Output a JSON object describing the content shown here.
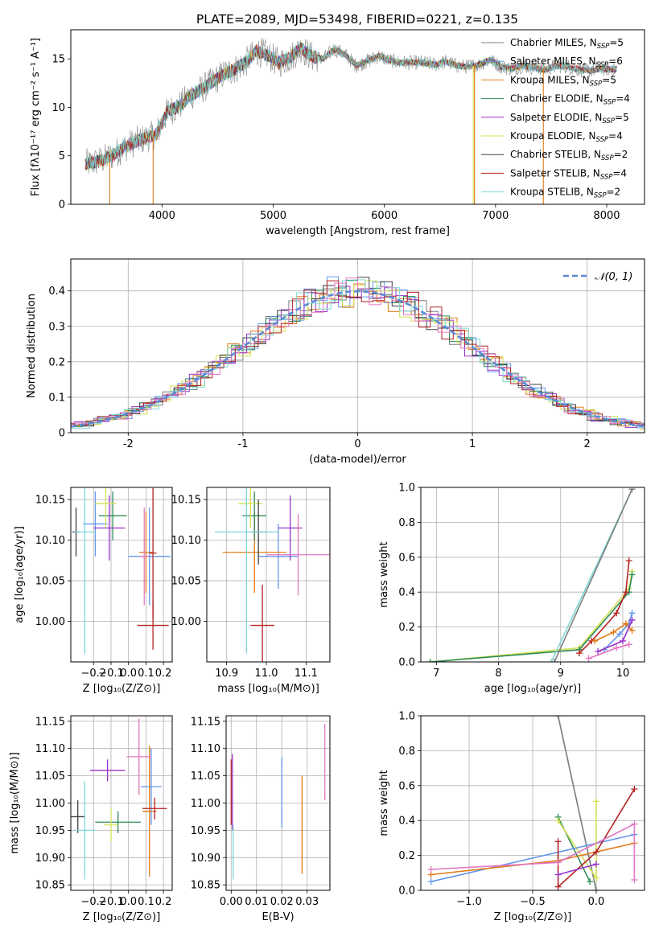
{
  "figure_title": "PLATE=2089, MJD=53498, FIBERID=0221, z=0.135",
  "colors": {
    "chabrier_miles": "#7f7f7f",
    "salpeter_miles": "#6495ed",
    "kroupa_miles": "#e07b1a",
    "chabrier_elodie": "#2e8b57",
    "salpeter_elodie": "#9932cc",
    "kroupa_elodie": "#d4e157",
    "chabrier_stelib": "#404040",
    "salpeter_stelib": "#b22222",
    "kroupa_stelib": "#7fd6d6",
    "pink": "#e377c2",
    "gauss": "#5b8ad6",
    "grid": "#b0b0b0"
  },
  "chart_data": [
    {
      "id": "spectrum",
      "type": "line",
      "title": "PLATE=2089, MJD=53498, FIBERID=0221, z=0.135",
      "xlabel": "wavelength [Angstrom, rest frame]",
      "ylabel": "Flux [fλ10⁻¹⁷ erg cm⁻² s⁻¹ A⁻¹]",
      "xlim": [
        3180,
        8340
      ],
      "ylim": [
        0,
        18
      ],
      "xticks": [
        4000,
        5000,
        6000,
        7000,
        8000
      ],
      "yticks": [
        0,
        5,
        10,
        15
      ],
      "grid": false,
      "legend_position": "top-right",
      "x": [
        3350,
        3450,
        3550,
        3650,
        3750,
        3850,
        3950,
        4050,
        4150,
        4250,
        4350,
        4450,
        4550,
        4650,
        4750,
        4850,
        4950,
        5050,
        5150,
        5250,
        5350,
        5450,
        5550,
        5650,
        5750,
        5850,
        5950,
        6050,
        6150,
        6250,
        6350,
        6450,
        6550,
        6650,
        6750,
        6850,
        6950,
        7050,
        7150,
        7250,
        7350,
        7450,
        7550,
        7650,
        7750,
        7850,
        7950,
        8050
      ],
      "y": [
        4.2,
        4.5,
        5.0,
        5.8,
        6.4,
        6.8,
        7.2,
        9.6,
        10.1,
        11.2,
        11.8,
        12.6,
        13.4,
        13.9,
        14.6,
        15.8,
        15.4,
        14.6,
        15.1,
        16.1,
        15.2,
        15.0,
        16.0,
        15.4,
        14.3,
        14.8,
        15.3,
        14.8,
        14.6,
        14.6,
        14.6,
        14.4,
        14.7,
        14.3,
        14.2,
        14.4,
        14.9,
        14.2,
        14.0,
        14.3,
        14.1,
        13.9,
        14.3,
        14.2,
        13.9,
        13.8,
        14.0,
        13.9
      ],
      "series": [
        {
          "name": "Chabrier MILES, N_SSP=5",
          "label": "Chabrier MILES, N",
          "sub": "SSP",
          "n": "=5",
          "color": "#7f7f7f"
        },
        {
          "name": "Salpeter MILES, N_SSP=6",
          "label": "Salpeter MILES, N",
          "sub": "SSP",
          "n": "=6",
          "color": "#6495ed"
        },
        {
          "name": "Kroupa MILES, N_SSP=5",
          "label": "Kroupa MILES, N",
          "sub": "SSP",
          "n": "=5",
          "color": "#e07b1a"
        },
        {
          "name": "Chabrier ELODIE, N_SSP=4",
          "label": "Chabrier ELODIE, N",
          "sub": "SSP",
          "n": "=4",
          "color": "#2e8b57"
        },
        {
          "name": "Salpeter ELODIE, N_SSP=5",
          "label": "Salpeter ELODIE, N",
          "sub": "SSP",
          "n": "=5",
          "color": "#9932cc"
        },
        {
          "name": "Kroupa ELODIE, N_SSP=4",
          "label": "Kroupa ELODIE, N",
          "sub": "SSP",
          "n": "=4",
          "color": "#d4e157"
        },
        {
          "name": "Chabrier STELIB, N_SSP=2",
          "label": "Chabrier STELIB, N",
          "sub": "SSP",
          "n": "=2",
          "color": "#404040"
        },
        {
          "name": "Salpeter STELIB, N_SSP=4",
          "label": "Salpeter STELIB, N",
          "sub": "SSP",
          "n": "=4",
          "color": "#b22222"
        },
        {
          "name": "Kroupa STELIB, N_SSP=2",
          "label": "Kroupa STELIB, N",
          "sub": "SSP",
          "n": "=2",
          "color": "#7fd6d6"
        }
      ],
      "drops_to_zero": [
        {
          "x": 3530,
          "color": "#e07b1a"
        },
        {
          "x": 3920,
          "color": "#e07b1a"
        },
        {
          "x": 6800,
          "color": "#d4e157"
        },
        {
          "x": 6810,
          "color": "#e07b1a"
        },
        {
          "x": 7430,
          "color": "#e07b1a"
        }
      ]
    },
    {
      "id": "residuals",
      "type": "line",
      "xlabel": "(data-model)/error",
      "ylabel": "Normed distribution",
      "xlim": [
        -2.5,
        2.5
      ],
      "ylim": [
        0,
        0.49
      ],
      "xticks": [
        -2,
        -1,
        0,
        1,
        2
      ],
      "yticks": [
        0.0,
        0.1,
        0.2,
        0.3,
        0.4
      ],
      "grid": true,
      "legend_position": "top-right",
      "legend_label": "𝒩(0, 1)",
      "gaussian": {
        "mean": 0,
        "sigma": 1
      }
    },
    {
      "id": "age-vs-Z",
      "type": "scatter",
      "xlabel": "Z [log₁₀(Z/Z⊙)]",
      "ylabel": "age  [log₁₀(age/yr)]",
      "xlim": [
        -0.33,
        0.25
      ],
      "ylim": [
        9.95,
        10.165
      ],
      "xticks": [
        -0.2,
        -0.1,
        0.0,
        0.1,
        0.2
      ],
      "xticklabels": [
        "−0.2",
        "−0.1",
        "0.0",
        "0.1",
        "0.2"
      ],
      "yticks": [
        10.0,
        10.05,
        10.1,
        10.15
      ],
      "yticklabels": [
        "10.00",
        "10.05",
        "10.10",
        "10.15"
      ],
      "grid": true,
      "points": [
        {
          "x": -0.19,
          "y": 10.12,
          "xerr": 0.07,
          "yerr": 0.04,
          "color": "#6495ed"
        },
        {
          "x": 0.12,
          "y": 10.08,
          "xerr": 0.12,
          "yerr": 0.06,
          "color": "#6495ed"
        },
        {
          "x": 0.1,
          "y": 10.085,
          "xerr": 0.04,
          "yerr": 0.05,
          "color": "#e07b1a"
        },
        {
          "x": -0.09,
          "y": 10.13,
          "xerr": 0.08,
          "yerr": 0.03,
          "color": "#2e8b57"
        },
        {
          "x": -0.11,
          "y": 10.115,
          "xerr": 0.09,
          "yerr": 0.04,
          "color": "#9932cc"
        },
        {
          "x": -0.13,
          "y": 10.145,
          "xerr": 0.06,
          "yerr": 0.03,
          "color": "#d4e157"
        },
        {
          "x": -0.3,
          "y": 10.11,
          "xerr": 0.02,
          "yerr": 0.03,
          "color": "#404040"
        },
        {
          "x": 0.14,
          "y": 9.995,
          "xerr": 0.09,
          "yerr": 0.03,
          "color": "#b22222"
        },
        {
          "x": -0.25,
          "y": 10.11,
          "xerr": 0.06,
          "yerr": 0.15,
          "color": "#7fd6d6"
        },
        {
          "x": 0.09,
          "y": 10.08,
          "xerr": 0.03,
          "yerr": 0.06,
          "color": "#e377c2"
        },
        {
          "x": 0.14,
          "y": 10.084,
          "xerr": 0.02,
          "yerr": 0.08,
          "color": "#b22222"
        }
      ]
    },
    {
      "id": "age-vs-mass",
      "type": "scatter",
      "xlabel": "mass [log₁₀(M/M⊙)]",
      "xlim": [
        10.85,
        11.16
      ],
      "ylim": [
        9.95,
        10.165
      ],
      "xticks": [
        10.9,
        11.0,
        11.1
      ],
      "xticklabels": [
        "10.9",
        "11.0",
        "11.1"
      ],
      "yticks": [
        10.0,
        10.05,
        10.1,
        10.15
      ],
      "yticklabels": [
        "10.00",
        "10.05",
        "10.10",
        "10.15"
      ],
      "grid": true,
      "points": [
        {
          "x": 11.03,
          "y": 10.08,
          "xerr": 0.05,
          "yerr": 0.04,
          "color": "#6495ed"
        },
        {
          "x": 10.97,
          "y": 10.085,
          "xerr": 0.08,
          "yerr": 0.05,
          "color": "#e07b1a"
        },
        {
          "x": 10.97,
          "y": 10.13,
          "xerr": 0.03,
          "yerr": 0.03,
          "color": "#2e8b57"
        },
        {
          "x": 11.06,
          "y": 10.115,
          "xerr": 0.03,
          "yerr": 0.04,
          "color": "#9932cc"
        },
        {
          "x": 10.96,
          "y": 10.145,
          "xerr": 0.03,
          "yerr": 0.03,
          "color": "#d4e157"
        },
        {
          "x": 10.98,
          "y": 10.11,
          "xerr": 0.02,
          "yerr": 0.04,
          "color": "#404040"
        },
        {
          "x": 10.99,
          "y": 9.995,
          "xerr": 0.03,
          "yerr": 0.05,
          "color": "#b22222"
        },
        {
          "x": 10.95,
          "y": 10.11,
          "xerr": 0.08,
          "yerr": 0.15,
          "color": "#7fd6d6"
        },
        {
          "x": 11.08,
          "y": 10.082,
          "xerr": 0.08,
          "yerr": 0.05,
          "color": "#e377c2"
        }
      ]
    },
    {
      "id": "mass-weight-vs-age",
      "type": "line",
      "xlabel": "age  [log₁₀(age/yr)]",
      "ylabel": "mass weight",
      "xlim": [
        6.75,
        10.35
      ],
      "ylim": [
        0,
        1
      ],
      "xticks": [
        7,
        8,
        9,
        10
      ],
      "yticks": [
        0.0,
        0.2,
        0.4,
        0.6,
        0.8,
        1.0
      ],
      "yticklabels": [
        "0.0",
        "0.2",
        "0.4",
        "0.6",
        "0.8",
        "1.0"
      ],
      "grid": true,
      "series": [
        {
          "color": "#d4e157",
          "x": [
            6.9,
            9.3,
            10.1,
            10.15
          ],
          "y": [
            0.0,
            0.08,
            0.42,
            0.52
          ]
        },
        {
          "color": "#2e8b57",
          "x": [
            6.9,
            9.3,
            10.1,
            10.15
          ],
          "y": [
            0.0,
            0.07,
            0.4,
            0.5
          ]
        },
        {
          "color": "#7fd6d6",
          "x": [
            8.85,
            10.15
          ],
          "y": [
            0.0,
            0.99
          ]
        },
        {
          "color": "#7f7f7f",
          "x": [
            8.9,
            10.15
          ],
          "y": [
            0.0,
            0.99
          ]
        },
        {
          "color": "#b22222",
          "x": [
            9.3,
            9.5,
            9.9,
            10.05,
            10.1
          ],
          "y": [
            0.05,
            0.12,
            0.28,
            0.4,
            0.58
          ]
        },
        {
          "color": "#6495ed",
          "x": [
            9.7,
            9.95,
            10.1,
            10.15
          ],
          "y": [
            0.07,
            0.16,
            0.22,
            0.28
          ]
        },
        {
          "color": "#e07b1a",
          "x": [
            9.55,
            9.85,
            10.05,
            10.15
          ],
          "y": [
            0.12,
            0.17,
            0.22,
            0.18
          ]
        },
        {
          "color": "#e377c2",
          "x": [
            9.45,
            9.9,
            10.1
          ],
          "y": [
            0.02,
            0.08,
            0.1
          ]
        },
        {
          "color": "#9932cc",
          "x": [
            9.6,
            10.0,
            10.15
          ],
          "y": [
            0.06,
            0.12,
            0.24
          ]
        }
      ]
    },
    {
      "id": "mass-vs-Z",
      "type": "scatter",
      "xlabel": "Z [log₁₀(Z/Z⊙)]",
      "ylabel": "mass [log₁₀(M/M⊙)]",
      "xlim": [
        -0.33,
        0.25
      ],
      "ylim": [
        10.84,
        11.16
      ],
      "xticks": [
        -0.2,
        -0.1,
        0.0,
        0.1,
        0.2
      ],
      "xticklabels": [
        "−0.2",
        "−0.1",
        "0.0",
        "0.1",
        "0.2"
      ],
      "yticks": [
        10.85,
        10.9,
        10.95,
        11.0,
        11.05,
        11.1,
        11.15
      ],
      "yticklabels": [
        "10.85",
        "10.90",
        "10.95",
        "11.00",
        "11.05",
        "11.10",
        "11.15"
      ],
      "grid": true,
      "points": [
        {
          "x": 0.13,
          "y": 11.03,
          "xerr": 0.06,
          "yerr": 0.07,
          "color": "#6495ed"
        },
        {
          "x": 0.12,
          "y": 10.985,
          "xerr": 0.04,
          "yerr": 0.12,
          "color": "#e07b1a"
        },
        {
          "x": -0.06,
          "y": 10.965,
          "xerr": 0.13,
          "yerr": 0.02,
          "color": "#2e8b57"
        },
        {
          "x": -0.12,
          "y": 11.06,
          "xerr": 0.1,
          "yerr": 0.02,
          "color": "#9932cc"
        },
        {
          "x": -0.1,
          "y": 10.96,
          "xerr": 0.04,
          "yerr": 0.03,
          "color": "#d4e157"
        },
        {
          "x": -0.29,
          "y": 10.975,
          "xerr": 0.04,
          "yerr": 0.03,
          "color": "#404040"
        },
        {
          "x": 0.15,
          "y": 10.99,
          "xerr": 0.07,
          "yerr": 0.02,
          "color": "#b22222"
        },
        {
          "x": -0.25,
          "y": 10.95,
          "xerr": 0.06,
          "yerr": 0.09,
          "color": "#7fd6d6"
        },
        {
          "x": 0.06,
          "y": 11.085,
          "xerr": 0.07,
          "yerr": 0.07,
          "color": "#e377c2"
        }
      ]
    },
    {
      "id": "mass-vs-EBV",
      "type": "scatter",
      "xlabel": "E(B-V)",
      "xlim": [
        -0.002,
        0.039
      ],
      "ylim": [
        10.84,
        11.16
      ],
      "xticks": [
        0.0,
        0.01,
        0.02,
        0.03
      ],
      "xticklabels": [
        "0.00",
        "0.01",
        "0.02",
        "0.03"
      ],
      "yticks": [
        10.85,
        10.9,
        10.95,
        11.0,
        11.05,
        11.1,
        11.15
      ],
      "yticklabels": [
        "10.85",
        "10.90",
        "10.95",
        "11.00",
        "11.05",
        "11.10",
        "11.15"
      ],
      "grid": true,
      "points": [
        {
          "x": 0.02,
          "y": 11.02,
          "xerr": 0,
          "yerr": 0.065,
          "color": "#6495ed"
        },
        {
          "x": 0.028,
          "y": 10.96,
          "xerr": 0,
          "yerr": 0.09,
          "color": "#e07b1a"
        },
        {
          "x": 0.0005,
          "y": 11.02,
          "xerr": 0,
          "yerr": 0.07,
          "color": "#9932cc"
        },
        {
          "x": 0.0,
          "y": 11.02,
          "xerr": 0,
          "yerr": 0.06,
          "color": "#b22222"
        },
        {
          "x": 0.0008,
          "y": 10.91,
          "xerr": 0,
          "yerr": 0.05,
          "color": "#7fd6d6"
        },
        {
          "x": 0.037,
          "y": 11.075,
          "xerr": 0,
          "yerr": 0.07,
          "color": "#e377c2"
        }
      ]
    },
    {
      "id": "mass-weight-vs-Z",
      "type": "line",
      "xlabel": "Z [log₁₀(Z/Z⊙)]",
      "ylabel": "mass weight",
      "xlim": [
        -1.38,
        0.38
      ],
      "ylim": [
        0,
        1
      ],
      "xticks": [
        -1.0,
        -0.5,
        0.0
      ],
      "xticklabels": [
        "−1.0",
        "−0.5",
        "0.0"
      ],
      "yticks": [
        0.0,
        0.2,
        0.4,
        0.6,
        0.8,
        1.0
      ],
      "yticklabels": [
        "0.0",
        "0.2",
        "0.4",
        "0.6",
        "0.8",
        "1.0"
      ],
      "grid": true,
      "series": [
        {
          "color": "#7fd6d6",
          "x": [
            -0.3,
            0.0
          ],
          "y": [
            1.0,
            0.0
          ]
        },
        {
          "color": "#7f7f7f",
          "x": [
            -0.3,
            0.0
          ],
          "y": [
            1.0,
            0.0
          ]
        },
        {
          "color": "#2e8b57",
          "x": [
            -0.3,
            -0.05
          ],
          "y": [
            0.42,
            0.05
          ]
        },
        {
          "color": "#d4e157",
          "x": [
            -0.3,
            0.0,
            0.0
          ],
          "y": [
            0.4,
            0.07,
            0.51
          ]
        },
        {
          "color": "#6495ed",
          "x": [
            -1.3,
            0.3
          ],
          "y": [
            0.05,
            0.32
          ]
        },
        {
          "color": "#e07b1a",
          "x": [
            -1.3,
            -0.3,
            0.3
          ],
          "y": [
            0.09,
            0.17,
            0.27
          ]
        },
        {
          "color": "#b22222",
          "x": [
            -0.3,
            -0.3,
            0.0,
            0.3
          ],
          "y": [
            0.28,
            0.02,
            0.22,
            0.58
          ]
        },
        {
          "color": "#e377c2",
          "x": [
            -1.3,
            -0.3,
            0.3,
            0.3
          ],
          "y": [
            0.12,
            0.16,
            0.38,
            0.06
          ]
        },
        {
          "color": "#9932cc",
          "x": [
            -0.3,
            0.0
          ],
          "y": [
            0.09,
            0.15
          ]
        }
      ]
    }
  ]
}
